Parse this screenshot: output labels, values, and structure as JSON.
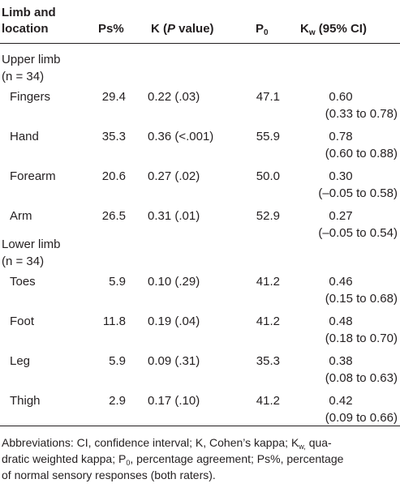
{
  "header": {
    "limb_line1": "Limb and",
    "limb_line2": "location",
    "ps": "Ps%",
    "k_prefix": "K (",
    "k_italic": "P",
    "k_suffix": " value)",
    "p_main": "P",
    "p_sub": "0",
    "kw_main": "K",
    "kw_sub": "w",
    "kw_suffix": " (95% CI)"
  },
  "groups": [
    {
      "label_line1": "Upper limb",
      "label_line2": "(n = 34)",
      "rows": [
        {
          "location": "Fingers",
          "ps": "29.4",
          "k": "0.22 (.03)",
          "p0": "47.1",
          "kw": "0.60",
          "ci": "(0.33 to 0.78)"
        },
        {
          "location": "Hand",
          "ps": "35.3",
          "k": "0.36 (<.001)",
          "p0": "55.9",
          "kw": "0.78",
          "ci": "(0.60 to 0.88)"
        },
        {
          "location": "Forearm",
          "ps": "20.6",
          "k": "0.27 (.02)",
          "p0": "50.0",
          "kw": "0.30",
          "ci": "(–0.05 to 0.58)"
        },
        {
          "location": "Arm",
          "ps": "26.5",
          "k": "0.31 (.01)",
          "p0": "52.9",
          "kw": "0.27",
          "ci": "(–0.05 to 0.54)"
        }
      ]
    },
    {
      "label_line1": "Lower limb",
      "label_line2": "(n = 34)",
      "rows": [
        {
          "location": "Toes",
          "ps": "5.9",
          "k": "0.10 (.29)",
          "p0": "41.2",
          "kw": "0.46",
          "ci": "(0.15 to 0.68)"
        },
        {
          "location": "Foot",
          "ps": "11.8",
          "k": "0.19 (.04)",
          "p0": "41.2",
          "kw": "0.48",
          "ci": "(0.18 to 0.70)"
        },
        {
          "location": "Leg",
          "ps": "5.9",
          "k": "0.09 (.31)",
          "p0": "35.3",
          "kw": "0.38",
          "ci": "(0.08 to 0.63)"
        },
        {
          "location": "Thigh",
          "ps": "2.9",
          "k": "0.17 (.10)",
          "p0": "41.2",
          "kw": "0.42",
          "ci": "(0.09 to 0.66)"
        }
      ]
    }
  ],
  "footnote": {
    "a": "Abbreviations: CI, confidence interval; K, Cohen’s kappa; K",
    "a_sub": "w,",
    "b": " qua-",
    "c": "dratic weighted kappa; P",
    "c_sub": "0",
    "d": ", percentage agreement; Ps%, percentage",
    "e": "of normal sensory responses (both raters)."
  }
}
